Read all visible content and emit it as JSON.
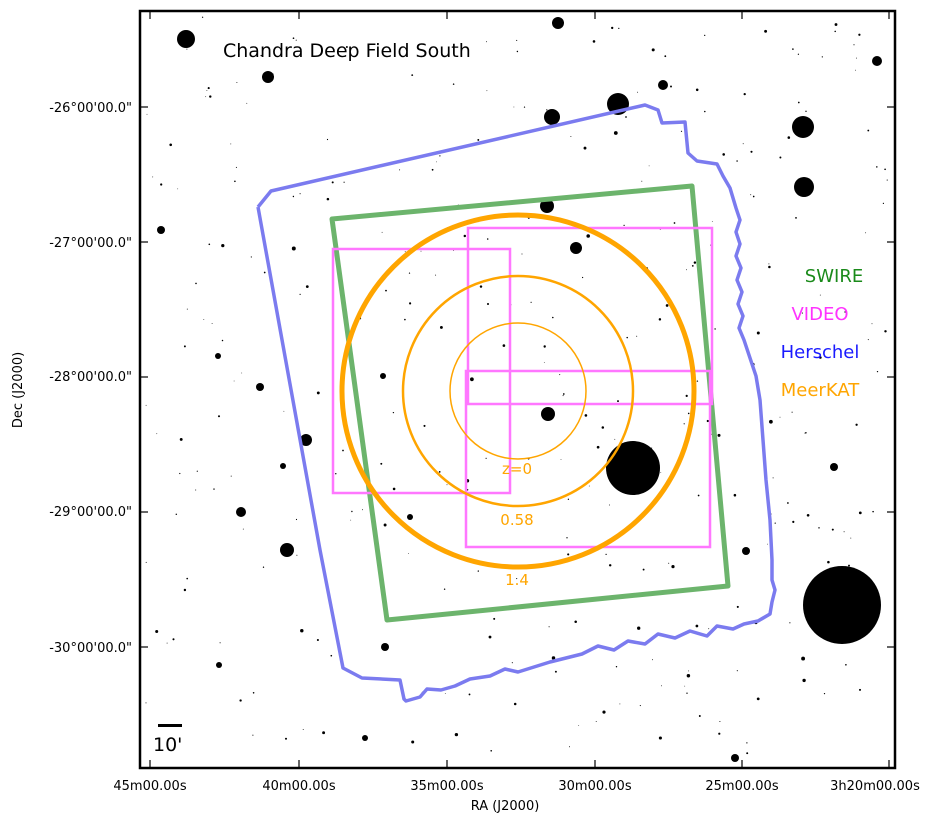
{
  "title": "Chandra Deep Field South",
  "axes": {
    "x_label": "RA (J2000)",
    "y_label": "Dec (J2000)",
    "x_ticks": [
      "45m00.00s",
      "40m00.00s",
      "35m00.00s",
      "30m00.00s",
      "25m00.00s",
      "3h20m00.00s"
    ],
    "y_ticks": [
      "-26°00'00.0\"",
      "-27°00'00.0\"",
      "-28°00'00.0\"",
      "-29°00'00.0\"",
      "-30°00'00.0\""
    ]
  },
  "legend": [
    {
      "label": "SWIRE",
      "color": "#1a8a1a"
    },
    {
      "label": "VIDEO",
      "color": "#ff33ff"
    },
    {
      "label": "Herschel",
      "color": "#1a1aff"
    },
    {
      "label": "MeerKAT",
      "color": "#ffa500"
    }
  ],
  "colors": {
    "swire_outline": "#6cb46c",
    "video_outline": "#ff77ff",
    "herschel_outline": "#7b7bef",
    "meerkat_outline": "#ffa500"
  },
  "meerkat_rings": [
    {
      "label": "z=0"
    },
    {
      "label": "0.58"
    },
    {
      "label": "1.4"
    }
  ],
  "scale_bar": {
    "label": "10'"
  }
}
